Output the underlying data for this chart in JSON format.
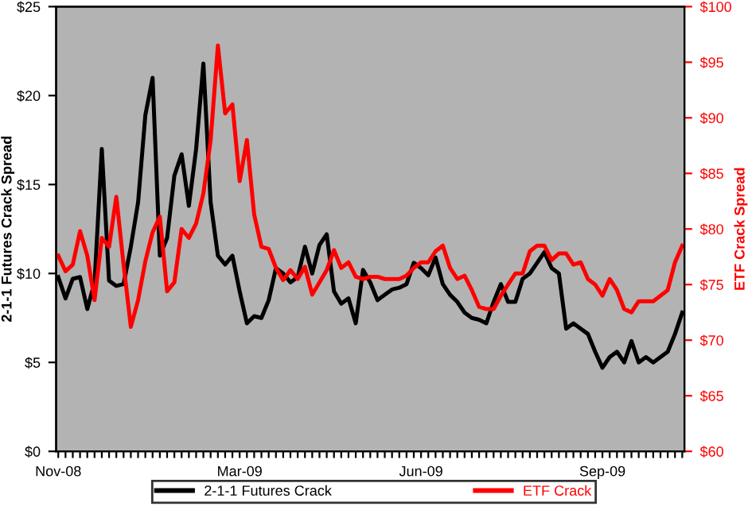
{
  "chart_data": {
    "type": "line",
    "xlabel": null,
    "ylabel": "2-1-1 Futures Crack Spread",
    "y2label": "ETF Crack Spread",
    "categories": [
      "Nov-08",
      null,
      null,
      null,
      null,
      null,
      null,
      null,
      null,
      null,
      null,
      null,
      null,
      null,
      null,
      null,
      null,
      null,
      null,
      null,
      null,
      null,
      null,
      null,
      null,
      "Mar-09",
      null,
      null,
      null,
      null,
      null,
      null,
      null,
      null,
      null,
      null,
      null,
      null,
      null,
      null,
      null,
      null,
      null,
      null,
      null,
      null,
      null,
      null,
      null,
      null,
      "Jun-09",
      null,
      null,
      null,
      null,
      null,
      null,
      null,
      null,
      null,
      null,
      null,
      null,
      null,
      null,
      null,
      null,
      null,
      null,
      null,
      null,
      null,
      null,
      null,
      null,
      "Sep-09",
      null,
      null,
      null,
      null,
      null,
      null,
      null,
      null,
      null,
      null,
      null
    ],
    "series": [
      {
        "name": "2-1-1 Futures Crack",
        "color": "#000000",
        "values": [
          9.8,
          8.6,
          9.7,
          9.8,
          8.0,
          9.5,
          17.0,
          9.6,
          9.3,
          9.4,
          11.5,
          14.0,
          18.9,
          21.0,
          11.0,
          12.0,
          15.5,
          16.7,
          13.8,
          17.0,
          21.8,
          14.0,
          11.0,
          10.5,
          11.0,
          9.0,
          7.2,
          7.6,
          7.5,
          8.5,
          10.3,
          10.0,
          9.5,
          9.8,
          11.5,
          10.0,
          11.6,
          12.2,
          9.0,
          8.3,
          8.6,
          7.2,
          10.2,
          9.5,
          8.5,
          8.8,
          9.1,
          9.2,
          9.4,
          10.6,
          10.3,
          9.9,
          10.9,
          9.4,
          8.8,
          8.4,
          7.8,
          7.5,
          7.4,
          7.2,
          8.4,
          9.4,
          8.4,
          8.4,
          9.7,
          10.0,
          10.6,
          11.2,
          10.3,
          10.0,
          6.9,
          7.2,
          6.9,
          6.6,
          5.6,
          4.7,
          5.3,
          5.6,
          5.0,
          6.2,
          5.0,
          5.3,
          5.0,
          5.3,
          5.6,
          6.6,
          7.8
        ]
      },
      {
        "name": "ETF Crack",
        "color": "#ff0000",
        "axis": "y2",
        "values": [
          77.6,
          76.2,
          76.8,
          79.8,
          77.6,
          73.6,
          79.2,
          78.4,
          82.9,
          76.8,
          71.2,
          73.6,
          77.1,
          79.7,
          81.1,
          74.4,
          75.2,
          80.0,
          79.2,
          80.5,
          83.2,
          88.0,
          96.5,
          90.4,
          91.2,
          84.3,
          88.0,
          81.3,
          78.4,
          78.2,
          76.5,
          75.4,
          76.3,
          75.5,
          76.6,
          74.1,
          75.2,
          76.3,
          78.1,
          76.5,
          77.0,
          75.7,
          75.5,
          75.7,
          75.7,
          75.5,
          75.5,
          75.5,
          75.8,
          76.5,
          77,
          77,
          78,
          78.5,
          76.5,
          75.5,
          75.8,
          74.5,
          73,
          72.8,
          72.8,
          74,
          75,
          76,
          76,
          78,
          78.5,
          78.5,
          77.2,
          77.8,
          77.8,
          76.8,
          77,
          75.5,
          75,
          74,
          75.5,
          74.5,
          72.8,
          72.5,
          73.5,
          73.5,
          73.5,
          74,
          74.5,
          77,
          78.5
        ]
      }
    ],
    "ylim": [
      0,
      25
    ],
    "yticks": [
      {
        "value": 0,
        "label": "$0"
      },
      {
        "value": 5,
        "label": "$5"
      },
      {
        "value": 10,
        "label": "$10"
      },
      {
        "value": 15,
        "label": "$15"
      },
      {
        "value": 20,
        "label": "$20"
      },
      {
        "value": 25,
        "label": "$25"
      }
    ],
    "y2lim": [
      60,
      100
    ],
    "y2ticks": [
      {
        "value": 60,
        "label": "$60"
      },
      {
        "value": 65,
        "label": "$65"
      },
      {
        "value": 70,
        "label": "$70"
      },
      {
        "value": 75,
        "label": "$75"
      },
      {
        "value": 80,
        "label": "$80"
      },
      {
        "value": 85,
        "label": "$85"
      },
      {
        "value": 90,
        "label": "$90"
      },
      {
        "value": 95,
        "label": "$95"
      },
      {
        "value": 100,
        "label": "$100"
      }
    ],
    "legend": "bottom",
    "marker": "none",
    "line_style": "solid"
  }
}
